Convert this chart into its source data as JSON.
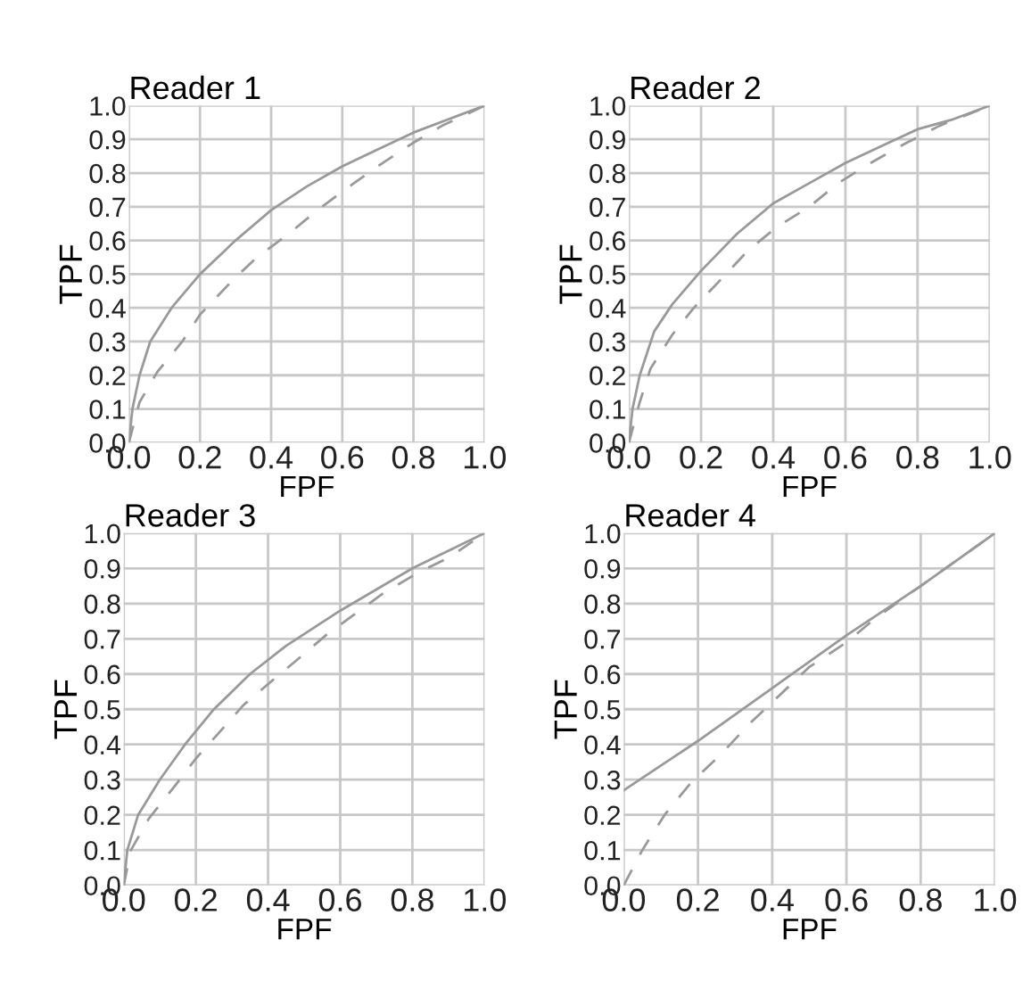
{
  "chart_data": [
    {
      "type": "line",
      "title": "Reader 1",
      "xlabel": "FPF",
      "ylabel": "TPF",
      "grid": true,
      "xlim": [
        0,
        1
      ],
      "ylim": [
        0,
        1
      ],
      "xticks": [
        {
          "value": 0,
          "label": "0.0"
        },
        {
          "value": 0.2,
          "label": "0.2"
        },
        {
          "value": 0.4,
          "label": "0.4"
        },
        {
          "value": 0.6,
          "label": "0.6"
        },
        {
          "value": 0.8,
          "label": "0.8"
        },
        {
          "value": 1,
          "label": "1.0"
        }
      ],
      "yticks": [
        {
          "value": 0,
          "label": "0.0"
        },
        {
          "value": 0.1,
          "label": "0.1"
        },
        {
          "value": 0.2,
          "label": "0.2"
        },
        {
          "value": 0.3,
          "label": "0.3"
        },
        {
          "value": 0.4,
          "label": "0.4"
        },
        {
          "value": 0.5,
          "label": "0.5"
        },
        {
          "value": 0.6,
          "label": "0.6"
        },
        {
          "value": 0.7,
          "label": "0.7"
        },
        {
          "value": 0.8,
          "label": "0.8"
        },
        {
          "value": 0.9,
          "label": "0.9"
        },
        {
          "value": 1,
          "label": "1.0"
        }
      ],
      "series": [
        {
          "color": "#999999",
          "line_style": "solid",
          "x": [
            0,
            0.01,
            0.03,
            0.06,
            0.12,
            0.2,
            0.3,
            0.4,
            0.5,
            0.6,
            0.7,
            0.8,
            0.9,
            1
          ],
          "values": [
            0,
            0.1,
            0.2,
            0.3,
            0.4,
            0.5,
            0.6,
            0.69,
            0.76,
            0.82,
            0.87,
            0.92,
            0.96,
            1
          ]
        },
        {
          "color": "#999999",
          "line_style": "dashed",
          "x": [
            0,
            0.03,
            0.08,
            0.15,
            0.2,
            0.29,
            0.36,
            0.45,
            0.53,
            0.62,
            0.7,
            0.8,
            0.88,
            1
          ],
          "values": [
            0,
            0.12,
            0.21,
            0.3,
            0.38,
            0.48,
            0.55,
            0.62,
            0.69,
            0.76,
            0.82,
            0.89,
            0.94,
            1
          ]
        }
      ]
    },
    {
      "type": "line",
      "title": "Reader 2",
      "xlabel": "FPF",
      "ylabel": "TPF",
      "grid": true,
      "xlim": [
        0,
        1
      ],
      "ylim": [
        0,
        1
      ],
      "xticks": [
        {
          "value": 0,
          "label": "0.0"
        },
        {
          "value": 0.2,
          "label": "0.2"
        },
        {
          "value": 0.4,
          "label": "0.4"
        },
        {
          "value": 0.6,
          "label": "0.6"
        },
        {
          "value": 0.8,
          "label": "0.8"
        },
        {
          "value": 1,
          "label": "1.0"
        }
      ],
      "yticks": [
        {
          "value": 0,
          "label": "0.0"
        },
        {
          "value": 0.1,
          "label": "0.1"
        },
        {
          "value": 0.2,
          "label": "0.2"
        },
        {
          "value": 0.3,
          "label": "0.3"
        },
        {
          "value": 0.4,
          "label": "0.4"
        },
        {
          "value": 0.5,
          "label": "0.5"
        },
        {
          "value": 0.6,
          "label": "0.6"
        },
        {
          "value": 0.7,
          "label": "0.7"
        },
        {
          "value": 0.8,
          "label": "0.8"
        },
        {
          "value": 0.9,
          "label": "0.9"
        },
        {
          "value": 1,
          "label": "1.0"
        }
      ],
      "series": [
        {
          "color": "#999999",
          "line_style": "solid",
          "x": [
            0,
            0.01,
            0.03,
            0.07,
            0.12,
            0.2,
            0.3,
            0.4,
            0.5,
            0.6,
            0.7,
            0.8,
            0.9,
            1
          ],
          "values": [
            0,
            0.1,
            0.2,
            0.33,
            0.41,
            0.51,
            0.62,
            0.71,
            0.77,
            0.83,
            0.88,
            0.93,
            0.96,
            1
          ]
        },
        {
          "color": "#999999",
          "line_style": "dashed",
          "x": [
            0,
            0.03,
            0.06,
            0.12,
            0.18,
            0.26,
            0.33,
            0.41,
            0.5,
            0.58,
            0.67,
            0.77,
            0.86,
            1
          ],
          "values": [
            0,
            0.12,
            0.22,
            0.32,
            0.4,
            0.49,
            0.57,
            0.64,
            0.7,
            0.77,
            0.83,
            0.89,
            0.94,
            1
          ]
        }
      ]
    },
    {
      "type": "line",
      "title": "Reader 3",
      "xlabel": "FPF",
      "ylabel": "TPF",
      "grid": true,
      "xlim": [
        0,
        1
      ],
      "ylim": [
        0,
        1
      ],
      "xticks": [
        {
          "value": 0,
          "label": "0.0"
        },
        {
          "value": 0.2,
          "label": "0.2"
        },
        {
          "value": 0.4,
          "label": "0.4"
        },
        {
          "value": 0.6,
          "label": "0.6"
        },
        {
          "value": 0.8,
          "label": "0.8"
        },
        {
          "value": 1,
          "label": "1.0"
        }
      ],
      "yticks": [
        {
          "value": 0,
          "label": "0.0"
        },
        {
          "value": 0.1,
          "label": "0.1"
        },
        {
          "value": 0.2,
          "label": "0.2"
        },
        {
          "value": 0.3,
          "label": "0.3"
        },
        {
          "value": 0.4,
          "label": "0.4"
        },
        {
          "value": 0.5,
          "label": "0.5"
        },
        {
          "value": 0.6,
          "label": "0.6"
        },
        {
          "value": 0.7,
          "label": "0.7"
        },
        {
          "value": 0.8,
          "label": "0.8"
        },
        {
          "value": 0.9,
          "label": "0.9"
        },
        {
          "value": 1,
          "label": "1.0"
        }
      ],
      "series": [
        {
          "color": "#999999",
          "line_style": "solid",
          "x": [
            0,
            0.01,
            0.04,
            0.1,
            0.17,
            0.25,
            0.35,
            0.45,
            0.6,
            0.7,
            0.8,
            0.9,
            1
          ],
          "values": [
            0,
            0.1,
            0.2,
            0.3,
            0.4,
            0.5,
            0.6,
            0.68,
            0.78,
            0.84,
            0.9,
            0.95,
            1
          ]
        },
        {
          "color": "#999999",
          "line_style": "dashed",
          "x": [
            0,
            0.02,
            0.07,
            0.14,
            0.2,
            0.27,
            0.33,
            0.41,
            0.48,
            0.56,
            0.64,
            0.72,
            0.82,
            0.9,
            1
          ],
          "values": [
            0,
            0.1,
            0.19,
            0.28,
            0.36,
            0.44,
            0.51,
            0.58,
            0.64,
            0.71,
            0.77,
            0.83,
            0.89,
            0.93,
            1
          ]
        }
      ]
    },
    {
      "type": "line",
      "title": "Reader 4",
      "xlabel": "FPF",
      "ylabel": "TPF",
      "grid": true,
      "xlim": [
        0,
        1
      ],
      "ylim": [
        0,
        1
      ],
      "xticks": [
        {
          "value": 0,
          "label": "0.0"
        },
        {
          "value": 0.2,
          "label": "0.2"
        },
        {
          "value": 0.4,
          "label": "0.4"
        },
        {
          "value": 0.6,
          "label": "0.6"
        },
        {
          "value": 0.8,
          "label": "0.8"
        },
        {
          "value": 1,
          "label": "1.0"
        }
      ],
      "yticks": [
        {
          "value": 0,
          "label": "0.0"
        },
        {
          "value": 0.1,
          "label": "0.1"
        },
        {
          "value": 0.2,
          "label": "0.2"
        },
        {
          "value": 0.3,
          "label": "0.3"
        },
        {
          "value": 0.4,
          "label": "0.4"
        },
        {
          "value": 0.5,
          "label": "0.5"
        },
        {
          "value": 0.6,
          "label": "0.6"
        },
        {
          "value": 0.7,
          "label": "0.7"
        },
        {
          "value": 0.8,
          "label": "0.8"
        },
        {
          "value": 0.9,
          "label": "0.9"
        },
        {
          "value": 1,
          "label": "1.0"
        }
      ],
      "series": [
        {
          "color": "#999999",
          "line_style": "solid",
          "x": [
            0,
            0.2,
            0.4,
            0.6,
            0.8,
            1
          ],
          "values": [
            0.27,
            0.41,
            0.56,
            0.71,
            0.85,
            1
          ]
        },
        {
          "color": "#999999",
          "line_style": "dashed",
          "x": [
            0,
            0.05,
            0.11,
            0.18,
            0.26,
            0.34,
            0.42,
            0.5,
            0.6,
            0.68,
            0.8,
            1
          ],
          "values": [
            0,
            0.1,
            0.2,
            0.29,
            0.37,
            0.46,
            0.54,
            0.62,
            0.69,
            0.76,
            0.85,
            1
          ]
        }
      ]
    }
  ]
}
